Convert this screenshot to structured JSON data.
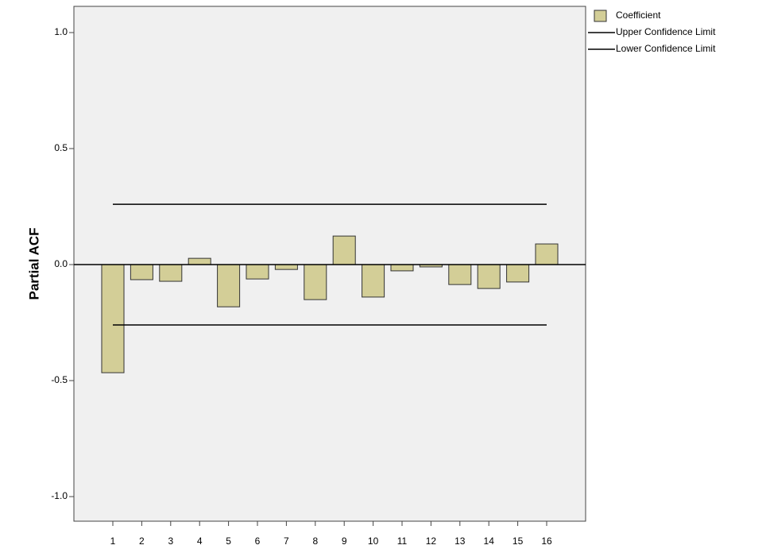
{
  "chart_data": {
    "type": "bar",
    "y_label": "Partial ACF",
    "categories": [
      "1",
      "2",
      "3",
      "4",
      "5",
      "6",
      "7",
      "8",
      "9",
      "10",
      "11",
      "12",
      "13",
      "14",
      "15",
      "16"
    ],
    "series": [
      {
        "name": "Coefficient",
        "type": "bar",
        "color": "#d3ce97",
        "values": [
          -0.466,
          -0.065,
          -0.072,
          0.027,
          -0.182,
          -0.062,
          -0.021,
          -0.151,
          0.123,
          -0.14,
          -0.027,
          -0.01,
          -0.086,
          -0.103,
          -0.075,
          0.089
        ]
      },
      {
        "name": "Upper Confidence Limit",
        "type": "line",
        "color": "#000000",
        "values": [
          0.26,
          0.26,
          0.26,
          0.26,
          0.26,
          0.26,
          0.26,
          0.26,
          0.26,
          0.26,
          0.26,
          0.26,
          0.26,
          0.26,
          0.26,
          0.26
        ]
      },
      {
        "name": "Lower Confidence Limit",
        "type": "line",
        "color": "#000000",
        "values": [
          -0.26,
          -0.26,
          -0.26,
          -0.26,
          -0.26,
          -0.26,
          -0.26,
          -0.26,
          -0.26,
          -0.26,
          -0.26,
          -0.26,
          -0.26,
          -0.26,
          -0.26,
          -0.26
        ]
      }
    ],
    "ylim": [
      -1.106,
      1.113
    ],
    "yticks": [
      {
        "value": -1,
        "label": "-1.0"
      },
      {
        "value": -0.5,
        "label": "-0.5"
      },
      {
        "value": 0,
        "label": "0.0"
      },
      {
        "value": 0.5,
        "label": "0.5"
      },
      {
        "value": 1,
        "label": "1.0"
      }
    ],
    "legend": "right",
    "grid": false
  }
}
